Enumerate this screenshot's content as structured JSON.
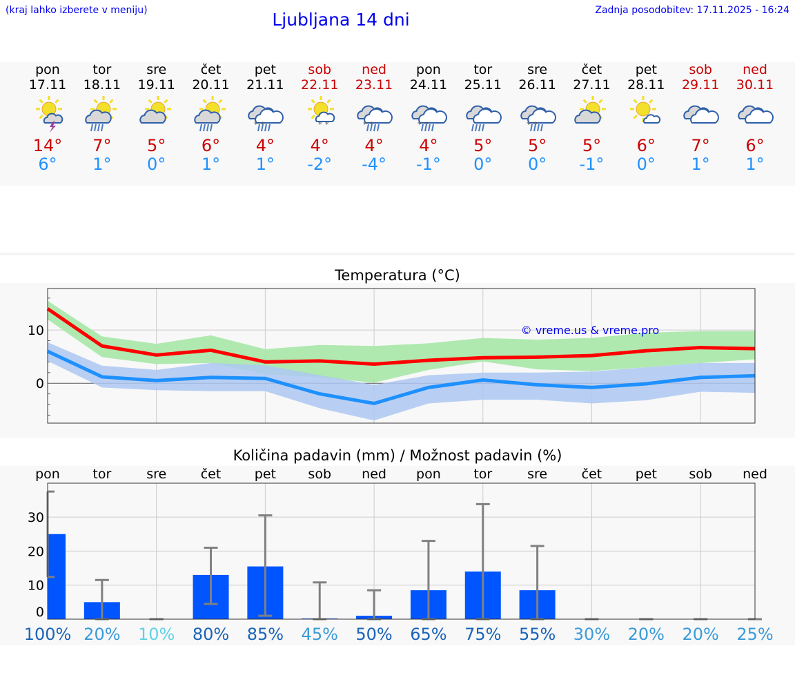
{
  "header": {
    "hint": "(kraj lahko izberete v meniju)",
    "title": "Ljubljana 14 dni",
    "updated": "Zadnja posodobitev: 17.11.2025 - 16:24"
  },
  "colors": {
    "max": "#ff0000",
    "min": "#1e90ff",
    "max_band": "#abe8ab",
    "min_band": "#adc8f2",
    "bar": "#0055ff",
    "error": "#808080",
    "weekend": "#cc0000"
  },
  "days": [
    {
      "name": "pon",
      "date": "17.11",
      "weekend": false,
      "icon": "sun-cloud-thunder",
      "max": "14°",
      "min": "6°"
    },
    {
      "name": "tor",
      "date": "18.11",
      "weekend": false,
      "icon": "sun-cloud-rain",
      "max": "7°",
      "min": "1°"
    },
    {
      "name": "sre",
      "date": "19.11",
      "weekend": false,
      "icon": "sun-cloud",
      "max": "5°",
      "min": "0°"
    },
    {
      "name": "čet",
      "date": "20.11",
      "weekend": false,
      "icon": "sun-cloud-rain",
      "max": "6°",
      "min": "1°"
    },
    {
      "name": "pet",
      "date": "21.11",
      "weekend": false,
      "icon": "clouds-sleet",
      "max": "4°",
      "min": "1°"
    },
    {
      "name": "sob",
      "date": "22.11",
      "weekend": true,
      "icon": "sun-cloud-snow",
      "max": "4°",
      "min": "-2°"
    },
    {
      "name": "ned",
      "date": "23.11",
      "weekend": true,
      "icon": "clouds-sleet",
      "max": "4°",
      "min": "-4°"
    },
    {
      "name": "pon",
      "date": "24.11",
      "weekend": false,
      "icon": "clouds-sleet",
      "max": "4°",
      "min": "-1°"
    },
    {
      "name": "tor",
      "date": "25.11",
      "weekend": false,
      "icon": "clouds-rain",
      "max": "5°",
      "min": "0°"
    },
    {
      "name": "sre",
      "date": "26.11",
      "weekend": false,
      "icon": "clouds-sleet",
      "max": "5°",
      "min": "0°"
    },
    {
      "name": "čet",
      "date": "27.11",
      "weekend": false,
      "icon": "sun-cloud",
      "max": "5°",
      "min": "-1°"
    },
    {
      "name": "pet",
      "date": "28.11",
      "weekend": false,
      "icon": "sun-small-cloud",
      "max": "6°",
      "min": "0°"
    },
    {
      "name": "sob",
      "date": "29.11",
      "weekend": true,
      "icon": "clouds",
      "max": "7°",
      "min": "1°"
    },
    {
      "name": "ned",
      "date": "30.11",
      "weekend": true,
      "icon": "clouds",
      "max": "6°",
      "min": "1°"
    }
  ],
  "chart_data": [
    {
      "type": "line",
      "title": "Temperatura (°C)",
      "watermark": "© vreme.us & vreme.pro",
      "x": [
        "17.11",
        "18.11",
        "19.11",
        "20.11",
        "21.11",
        "22.11",
        "23.11",
        "24.11",
        "25.11",
        "26.11",
        "27.11",
        "28.11",
        "29.11",
        "30.11"
      ],
      "ylim": [
        -7.5,
        17.8
      ],
      "yticks": [
        0,
        10
      ],
      "grid": true,
      "series": [
        {
          "key": "max",
          "values": [
            14,
            7,
            5.3,
            6.2,
            4,
            4.2,
            3.6,
            4.3,
            4.8,
            4.9,
            5.2,
            6.1,
            6.7,
            6.5
          ],
          "band_low": [
            12,
            4.9,
            3.6,
            3.8,
            1.7,
            1.1,
            0.1,
            2.5,
            4.1,
            2.6,
            2.3,
            3,
            3.8,
            4.5
          ],
          "band_high": [
            15.5,
            8.8,
            7.4,
            9,
            6.4,
            7.2,
            7,
            7.5,
            8.5,
            8.2,
            8.5,
            9.5,
            9.8,
            9.8
          ]
        },
        {
          "key": "min",
          "values": [
            6,
            1.2,
            0.5,
            1.1,
            0.9,
            -2,
            -3.8,
            -0.8,
            0.6,
            -0.3,
            -0.8,
            -0.1,
            1.1,
            1.4
          ],
          "band_low": [
            4.2,
            -0.8,
            -1.3,
            -1.5,
            -1.5,
            -4.7,
            -7,
            -3.8,
            -3.1,
            -3.1,
            -3.8,
            -3.2,
            -1.6,
            -1.8
          ],
          "band_high": [
            7.7,
            3.3,
            2.5,
            3.8,
            3.4,
            1.5,
            -0.3,
            1.5,
            2,
            2,
            2.2,
            3,
            3.8,
            3.8
          ]
        }
      ]
    },
    {
      "type": "bar",
      "title": "Količina padavin (mm) / Možnost padavin (%)",
      "categories": [
        "pon",
        "tor",
        "sre",
        "čet",
        "pet",
        "sob",
        "ned",
        "pon",
        "tor",
        "sre",
        "čet",
        "pet",
        "sob",
        "ned"
      ],
      "values": [
        25,
        5,
        0,
        13,
        15.5,
        0.2,
        1,
        8.5,
        14,
        8.5,
        0,
        0,
        0,
        0
      ],
      "error_low": [
        12.4,
        0,
        0,
        4.5,
        1,
        0,
        0,
        0,
        0,
        0,
        0,
        0,
        0,
        0
      ],
      "error_high": [
        37.5,
        11.5,
        0,
        21,
        30.5,
        10.8,
        8.5,
        23,
        33.8,
        21.5,
        0,
        0,
        0,
        0
      ],
      "probability": [
        "100%",
        "20%",
        "10%",
        "80%",
        "85%",
        "45%",
        "50%",
        "65%",
        "75%",
        "55%",
        "30%",
        "20%",
        "20%",
        "25%"
      ],
      "probability_colors": [
        "#1a63b8",
        "#3a9ad9",
        "#5fd3e6",
        "#1a63b8",
        "#1a63b8",
        "#3a9ad9",
        "#1a63b8",
        "#1a63b8",
        "#1a63b8",
        "#1a63b8",
        "#3a9ad9",
        "#3a9ad9",
        "#3a9ad9",
        "#3a9ad9"
      ],
      "ylim": [
        0,
        40
      ],
      "yticks": [
        0,
        10,
        20,
        30
      ],
      "grid": true
    }
  ]
}
